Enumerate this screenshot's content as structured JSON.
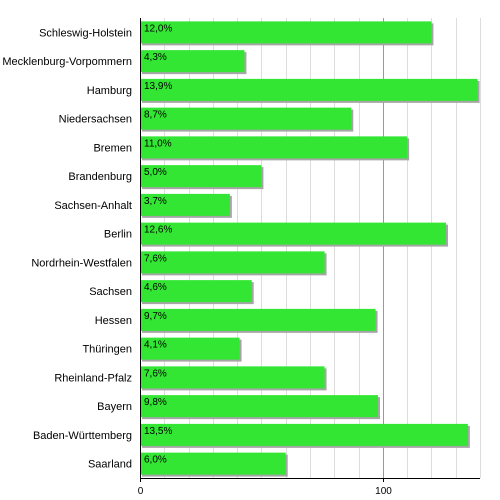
{
  "chart_data": {
    "type": "bar",
    "orientation": "horizontal",
    "categories": [
      "Schleswig-Holstein",
      "Mecklenburg-Vorpommern",
      "Hamburg",
      "Niedersachsen",
      "Bremen",
      "Brandenburg",
      "Sachsen-Anhalt",
      "Berlin",
      "Nordrhein-Westfalen",
      "Sachsen",
      "Hessen",
      "Thüringen",
      "Rheinland-Pfalz",
      "Bayern",
      "Baden-Württemberg",
      "Saarland"
    ],
    "values": [
      120,
      43,
      139,
      87,
      110,
      50,
      37,
      126,
      76,
      46,
      97,
      41,
      76,
      98,
      135,
      60
    ],
    "data_labels": [
      "12,0%",
      "4,3%",
      "13,9%",
      "8,7%",
      "11,0%",
      "5,0%",
      "3,7%",
      "12,6%",
      "7,6%",
      "4,6%",
      "9,7%",
      "4,1%",
      "7,6%",
      "9,8%",
      "13,5%",
      "6,0%"
    ],
    "xlim": [
      0,
      140
    ],
    "x_ticks": [
      0,
      100
    ],
    "x_tick_labels": [
      "0",
      "100"
    ],
    "grid": true,
    "bar_color": "#33e633",
    "bar_shadow_color": "#a6a6a6",
    "grid_color": "#dddddd",
    "major_grid_color": "#999999"
  }
}
